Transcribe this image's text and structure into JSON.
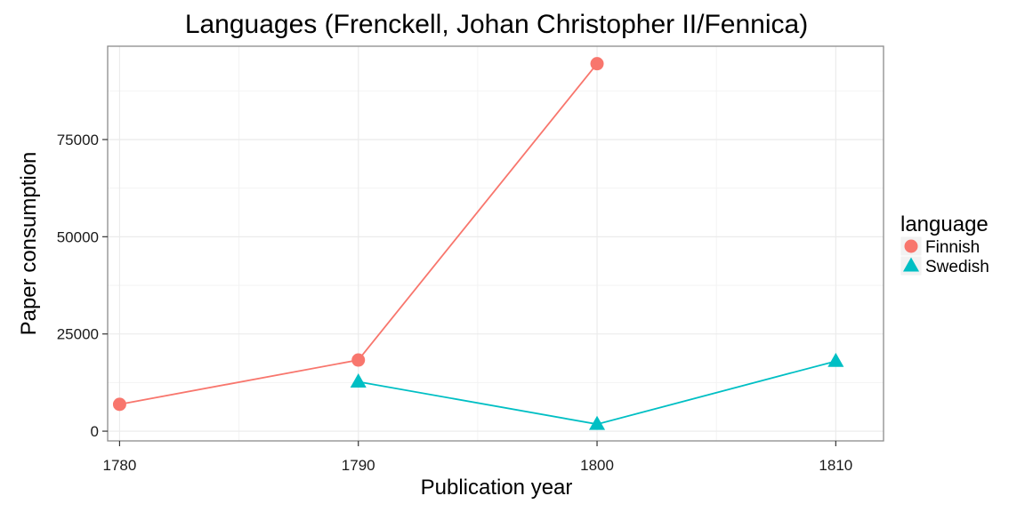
{
  "chart_data": {
    "type": "line",
    "title": "Languages (Frenckell, Johan Christopher II/Fennica)",
    "xlabel": "Publication year",
    "ylabel": "Paper consumption",
    "x_ticks": [
      1780,
      1790,
      1800,
      1810
    ],
    "y_ticks": [
      0,
      25000,
      50000,
      75000
    ],
    "xlim": [
      1779.5,
      1812
    ],
    "ylim": [
      -2500,
      99000
    ],
    "grid": true,
    "legend": {
      "title": "language",
      "position": "right"
    },
    "series": [
      {
        "name": "Finnish",
        "color": "#F8766D",
        "marker": "circle",
        "x": [
          1780,
          1790,
          1800
        ],
        "y": [
          6900,
          18300,
          94500
        ]
      },
      {
        "name": "Swedish",
        "color": "#00BFC4",
        "marker": "triangle",
        "x": [
          1790,
          1800,
          1810
        ],
        "y": [
          12700,
          1800,
          18000
        ]
      }
    ]
  }
}
